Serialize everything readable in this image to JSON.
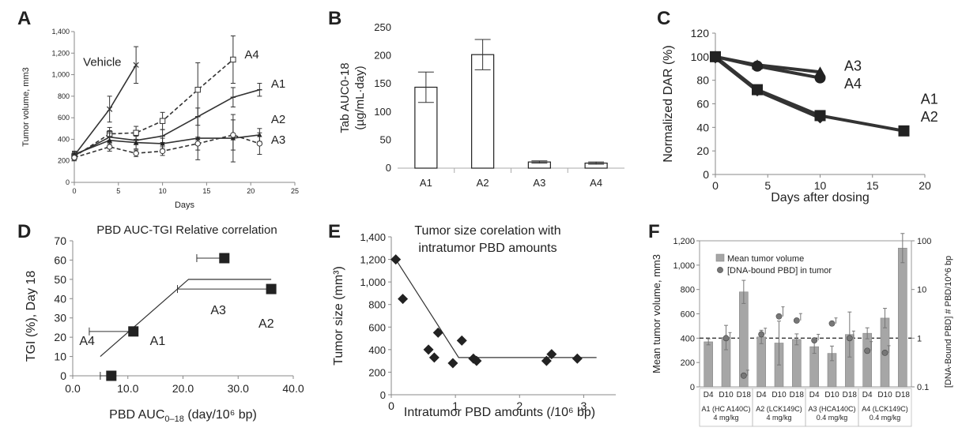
{
  "chart_data": [
    {
      "panel": "A",
      "type": "line",
      "title": "",
      "xlabel": "Days",
      "ylabel": "Tumor volume, mm3",
      "xlim": [
        0,
        25
      ],
      "ylim": [
        0,
        1400
      ],
      "xticks": [
        0,
        5,
        10,
        15,
        20,
        25
      ],
      "yticks": [
        0,
        200,
        400,
        600,
        800,
        1000,
        1200,
        1400
      ],
      "ytick_labels": [
        "0",
        "200",
        "400",
        "600",
        "800",
        "1,000",
        "1,200",
        "1,400"
      ],
      "series": [
        {
          "name": "Vehicle",
          "label_at": [
            1,
            1080
          ],
          "dashed": false,
          "marker": "x",
          "x": [
            0,
            4,
            7
          ],
          "y": [
            250,
            680,
            1090
          ],
          "err": [
            30,
            120,
            170
          ]
        },
        {
          "name": "A4",
          "label_at": [
            19.3,
            1150
          ],
          "dashed": true,
          "marker": "square",
          "x": [
            0,
            4,
            7,
            10,
            14,
            18
          ],
          "y": [
            240,
            450,
            460,
            570,
            860,
            1140
          ],
          "err": [
            30,
            60,
            60,
            80,
            250,
            220
          ]
        },
        {
          "name": "A1",
          "label_at": [
            22.3,
            880
          ],
          "dashed": false,
          "marker": "bar",
          "x": [
            0,
            4,
            7,
            10,
            14,
            18,
            21
          ],
          "y": [
            250,
            420,
            390,
            430,
            610,
            790,
            860
          ],
          "err": [
            30,
            60,
            40,
            60,
            80,
            90,
            60
          ]
        },
        {
          "name": "A2",
          "label_at": [
            22.3,
            550
          ],
          "dashed": false,
          "marker": "triangle",
          "x": [
            0,
            4,
            7,
            10,
            14,
            18,
            21
          ],
          "y": [
            260,
            390,
            370,
            360,
            410,
            410,
            440
          ],
          "err": [
            30,
            70,
            60,
            50,
            200,
            220,
            60
          ]
        },
        {
          "name": "A3",
          "label_at": [
            22.3,
            360
          ],
          "dashed": true,
          "marker": "circle",
          "x": [
            0,
            4,
            7,
            10,
            14,
            18,
            21
          ],
          "y": [
            230,
            330,
            270,
            290,
            360,
            440,
            360
          ],
          "err": [
            30,
            40,
            30,
            40,
            60,
            140,
            100
          ]
        }
      ]
    },
    {
      "panel": "B",
      "type": "bar",
      "title": "",
      "ylabel": "Tab AUC0-18 (µg/mL·day)",
      "ylabel_lines": [
        "Tab AUC0-18",
        "(µg/mL·day)"
      ],
      "categories": [
        "A1",
        "A2",
        "A3",
        "A4"
      ],
      "values": [
        144,
        202,
        11,
        9
      ],
      "err": [
        27,
        27,
        2,
        2
      ],
      "ylim": [
        0,
        250
      ],
      "yticks": [
        0,
        50,
        100,
        150,
        200,
        250
      ]
    },
    {
      "panel": "C",
      "type": "line",
      "title": "",
      "xlabel": "Days after dosing",
      "ylabel": "Normalized DAR (%)",
      "xlim": [
        0,
        20
      ],
      "ylim": [
        0,
        120
      ],
      "xticks": [
        0,
        5,
        10,
        15,
        20
      ],
      "yticks": [
        0,
        20,
        40,
        60,
        80,
        100,
        120
      ],
      "series": [
        {
          "name": "A3",
          "marker": "triangle",
          "x": [
            0,
            4,
            10
          ],
          "y": [
            100,
            93,
            87
          ]
        },
        {
          "name": "A4",
          "marker": "circle",
          "x": [
            0,
            4,
            10
          ],
          "y": [
            100,
            92,
            82
          ]
        },
        {
          "name": "A1",
          "marker": "diamond",
          "x": [
            0,
            4,
            10
          ],
          "y": [
            99,
            71,
            48
          ]
        },
        {
          "name": "A2",
          "marker": "square",
          "x": [
            0,
            4,
            10,
            18
          ],
          "y": [
            100,
            72,
            50,
            37
          ]
        }
      ],
      "labels": [
        {
          "text": "A3",
          "at": [
            12.3,
            88
          ]
        },
        {
          "text": "A4",
          "at": [
            12.3,
            73
          ]
        },
        {
          "text": "A1",
          "at": [
            19.6,
            60
          ]
        },
        {
          "text": "A2",
          "at": [
            19.6,
            45
          ]
        }
      ]
    },
    {
      "panel": "D",
      "type": "scatter",
      "title": "PBD AUC-TGI Relative correlation",
      "xlabel": "PBD AUC0–18 (day/10⁶ bp)",
      "xlabel_main": "PBD AUC",
      "xlabel_sub": "0–18",
      "xlabel_tail": " (day/10⁶ bp)",
      "ylabel": "TGI (%), Day 18",
      "xlim": [
        0,
        40
      ],
      "ylim": [
        0,
        70
      ],
      "xticks": [
        0.0,
        10.0,
        20.0,
        30.0,
        40.0
      ],
      "xtick_labels": [
        "0.0",
        "10.0",
        "20.0",
        "30.0",
        "40.0"
      ],
      "yticks": [
        0,
        10,
        20,
        30,
        40,
        50,
        60,
        70
      ],
      "points": [
        {
          "x": 7,
          "y": 0,
          "xerr_minus": 2
        },
        {
          "x": 11,
          "y": 23,
          "xerr_minus": 8
        },
        {
          "x": 27.5,
          "y": 61,
          "xerr_minus": 5
        },
        {
          "x": 36,
          "y": 45,
          "xerr_minus": 17
        }
      ],
      "trend": [
        [
          5,
          10
        ],
        [
          19,
          45
        ],
        [
          21,
          50
        ],
        [
          36,
          50
        ]
      ],
      "labels": [
        {
          "text": "A4",
          "at": [
            1.2,
            16
          ]
        },
        {
          "text": "A1",
          "at": [
            14,
            16
          ]
        },
        {
          "text": "A3",
          "at": [
            25,
            32
          ]
        },
        {
          "text": "A2",
          "at": [
            33.7,
            25
          ]
        }
      ]
    },
    {
      "panel": "E",
      "type": "scatter",
      "title": "Tumor size corelation with intratumor PBD amounts",
      "title_lines": [
        "Tumor size corelation with",
        "intratumor PBD amounts"
      ],
      "xlabel": "Intratumor PBD amounts (/10⁶ bp)",
      "ylabel": "Tumor size (mm³)",
      "xlim": [
        0,
        3.5
      ],
      "ylim": [
        0,
        1400
      ],
      "xticks": [
        0,
        1,
        2,
        3
      ],
      "yticks": [
        0,
        200,
        400,
        600,
        800,
        1000,
        1200,
        1400
      ],
      "ytick_labels": [
        "0",
        "200",
        "400",
        "600",
        "800",
        "1,000",
        "1,200",
        "1,400"
      ],
      "points": [
        {
          "x": 0.07,
          "y": 1200
        },
        {
          "x": 0.18,
          "y": 850
        },
        {
          "x": 0.58,
          "y": 400
        },
        {
          "x": 0.67,
          "y": 330
        },
        {
          "x": 0.73,
          "y": 550
        },
        {
          "x": 0.96,
          "y": 280
        },
        {
          "x": 1.1,
          "y": 480
        },
        {
          "x": 1.28,
          "y": 320
        },
        {
          "x": 1.33,
          "y": 300
        },
        {
          "x": 2.42,
          "y": 300
        },
        {
          "x": 2.5,
          "y": 360
        },
        {
          "x": 2.9,
          "y": 320
        }
      ],
      "trend": [
        [
          0.07,
          1200
        ],
        [
          1.05,
          330
        ],
        [
          3.2,
          330
        ]
      ]
    },
    {
      "panel": "F",
      "type": "bar",
      "title": "",
      "ylabel": "Mean tumor volume, mm3",
      "y2label": "[DNA-Bound PBD] # PBD/10^6 bp",
      "ylim": [
        0,
        1200
      ],
      "yticks": [
        0,
        200,
        400,
        600,
        800,
        1000,
        1200
      ],
      "ytick_labels": [
        "0",
        "200",
        "400",
        "600",
        "800",
        "1,000",
        "1,200"
      ],
      "y2lim_log": [
        0.1,
        100
      ],
      "y2ticks": [
        0.1,
        1,
        10,
        100
      ],
      "y2tick_labels": [
        "0.1",
        "1",
        "10",
        "100"
      ],
      "reference_line_y2": 1,
      "legend": [
        "Mean tumor volume",
        "[DNA-bound PBD] in tumor"
      ],
      "legend_placement": "top-left",
      "categories": [
        "D4",
        "D10",
        "D18",
        "D4",
        "D10",
        "D18",
        "D4",
        "D10",
        "D18",
        "D4",
        "D10",
        "D18"
      ],
      "groups": [
        {
          "label": "A1 (HC A140C)",
          "dose": "4 mg/kg"
        },
        {
          "label": "A2 (LCK149C)",
          "dose": "4 mg/kg"
        },
        {
          "label": "A3 (HCA140C)",
          "dose": "0.4 mg/kg"
        },
        {
          "label": "A4 (LCK149C)",
          "dose": "0.4 mg/kg"
        }
      ],
      "series": [
        {
          "name": "Mean tumor volume",
          "values": [
            370,
            405,
            780,
            410,
            360,
            390,
            330,
            275,
            430,
            440,
            565,
            1140
          ],
          "err": [
            25,
            100,
            95,
            55,
            180,
            45,
            55,
            60,
            185,
            45,
            80,
            120
          ]
        },
        {
          "name": "[DNA-bound PBD] in tumor",
          "values": [
            null,
            1.0,
            0.17,
            1.2,
            2.8,
            2.3,
            0.9,
            2.0,
            1.0,
            0.55,
            0.5,
            null
          ],
          "err_up": [
            null,
            0.3,
            0.05,
            0.4,
            1.6,
            0.9,
            0.3,
            0.6,
            0.4,
            0.3,
            0.2,
            null
          ]
        }
      ]
    }
  ]
}
